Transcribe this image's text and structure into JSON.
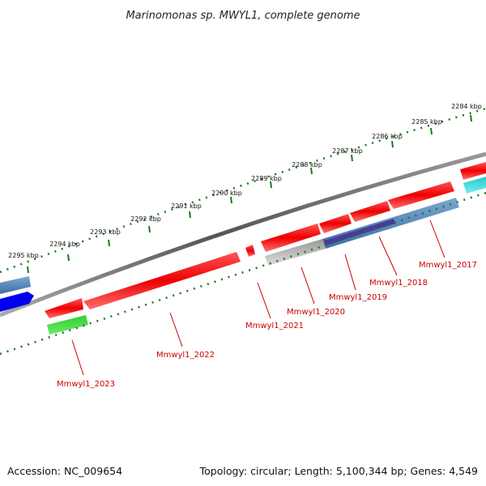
{
  "header": {
    "title": "Marinomonas sp. MWYL1, complete genome"
  },
  "footer": {
    "accession": "Accession: NC_009654",
    "topology": "Topology: circular; Length: 5,100,344 bp; Genes: 4,549"
  },
  "ruler": {
    "labels": [
      "2284 kbp",
      "2285 kbp",
      "2286 kbp",
      "2287 kbp",
      "2288 kbp",
      "2289 kbp",
      "2290 kbp",
      "2291 kbp",
      "2292 kbp",
      "2293 kbp",
      "2294 kbp",
      "2295 kbp"
    ]
  },
  "genes": [
    {
      "name": "Mmwyl1_2017",
      "color": "#ff0000"
    },
    {
      "name": "Mmwyl1_2018",
      "color": "#ff0000"
    },
    {
      "name": "Mmwyl1_2019",
      "color": "#ff0000"
    },
    {
      "name": "Mmwyl1_2020",
      "color": "#ff0000"
    },
    {
      "name": "Mmwyl1_2021",
      "color": "#ff0000"
    },
    {
      "name": "Mmwyl1_2022",
      "color": "#ff0000"
    },
    {
      "name": "Mmwyl1_2023",
      "color": "#ff0000"
    }
  ],
  "colors": {
    "gene_forward": "#ff0000",
    "backbone": "#777777",
    "tick": "#1a7a1a",
    "label_line": "#cc0000",
    "feature_green": "#22bb22",
    "feature_blue": "#0000ee",
    "feature_steel": "#4a7fb5",
    "feature_gray": "#bbbbbb",
    "feature_cyan": "#22cccc",
    "feature_purple": "#4a3a9a"
  }
}
